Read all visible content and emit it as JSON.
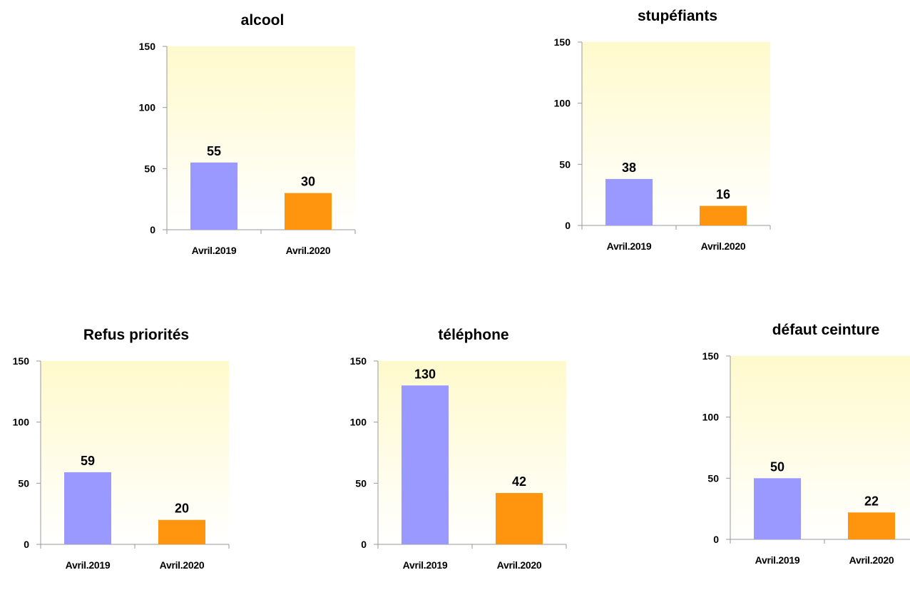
{
  "chart_data": [
    {
      "type": "bar",
      "title": "alcool",
      "categories": [
        "Avril.2019",
        "Avril.2020"
      ],
      "values": [
        55,
        30
      ],
      "bar_colors": [
        "#9999ff",
        "#ff950e"
      ],
      "ylim": [
        0,
        150
      ],
      "yticks": [
        0,
        50,
        100,
        150
      ],
      "data_labels": true,
      "plot_background": [
        "#fffacc",
        "#ffffff"
      ]
    },
    {
      "type": "bar",
      "title": "stupéfiants",
      "categories": [
        "Avril.2019",
        "Avril.2020"
      ],
      "values": [
        38,
        16
      ],
      "bar_colors": [
        "#9999ff",
        "#ff950e"
      ],
      "ylim": [
        0,
        150
      ],
      "yticks": [
        0,
        50,
        100,
        150
      ],
      "data_labels": true,
      "plot_background": [
        "#fffacc",
        "#ffffff"
      ]
    },
    {
      "type": "bar",
      "title": "Refus priorités",
      "categories": [
        "Avril.2019",
        "Avril.2020"
      ],
      "values": [
        59,
        20
      ],
      "bar_colors": [
        "#9999ff",
        "#ff950e"
      ],
      "ylim": [
        0,
        150
      ],
      "yticks": [
        0,
        50,
        100,
        150
      ],
      "data_labels": true,
      "plot_background": [
        "#fffacc",
        "#ffffff"
      ]
    },
    {
      "type": "bar",
      "title": "téléphone",
      "categories": [
        "Avril.2019",
        "Avril.2020"
      ],
      "values": [
        130,
        42
      ],
      "bar_colors": [
        "#9999ff",
        "#ff950e"
      ],
      "ylim": [
        0,
        150
      ],
      "yticks": [
        0,
        50,
        100,
        150
      ],
      "data_labels": true,
      "plot_background": [
        "#fffacc",
        "#ffffff"
      ]
    },
    {
      "type": "bar",
      "title": "défaut ceinture",
      "categories": [
        "Avril.2019",
        "Avril.2020"
      ],
      "values": [
        50,
        22
      ],
      "bar_colors": [
        "#9999ff",
        "#ff950e"
      ],
      "ylim": [
        0,
        150
      ],
      "yticks": [
        0,
        50,
        100,
        150
      ],
      "data_labels": true,
      "plot_background": [
        "#fffacc",
        "#ffffff"
      ]
    }
  ]
}
